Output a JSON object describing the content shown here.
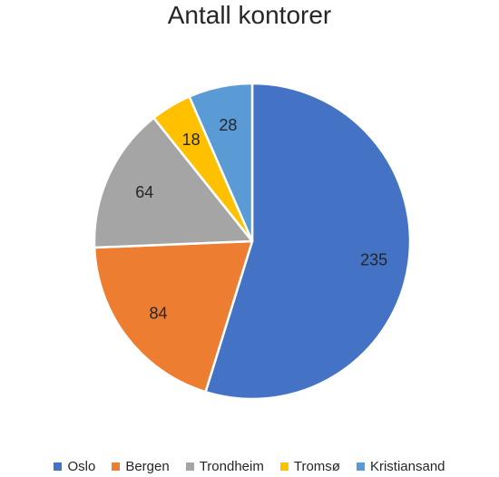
{
  "chart_data": {
    "type": "pie",
    "title": "Antall kontorer",
    "categories": [
      "Oslo",
      "Bergen",
      "Trondheim",
      "Tromsø",
      "Kristiansand"
    ],
    "values": [
      235,
      84,
      64,
      18,
      28
    ],
    "colors": [
      "#4472C4",
      "#ED7D31",
      "#A5A5A5",
      "#FFC000",
      "#5B9BD5"
    ],
    "data_labels": [
      "235",
      "84",
      "64",
      "18",
      "28"
    ],
    "legend": {
      "position": "bottom"
    }
  }
}
